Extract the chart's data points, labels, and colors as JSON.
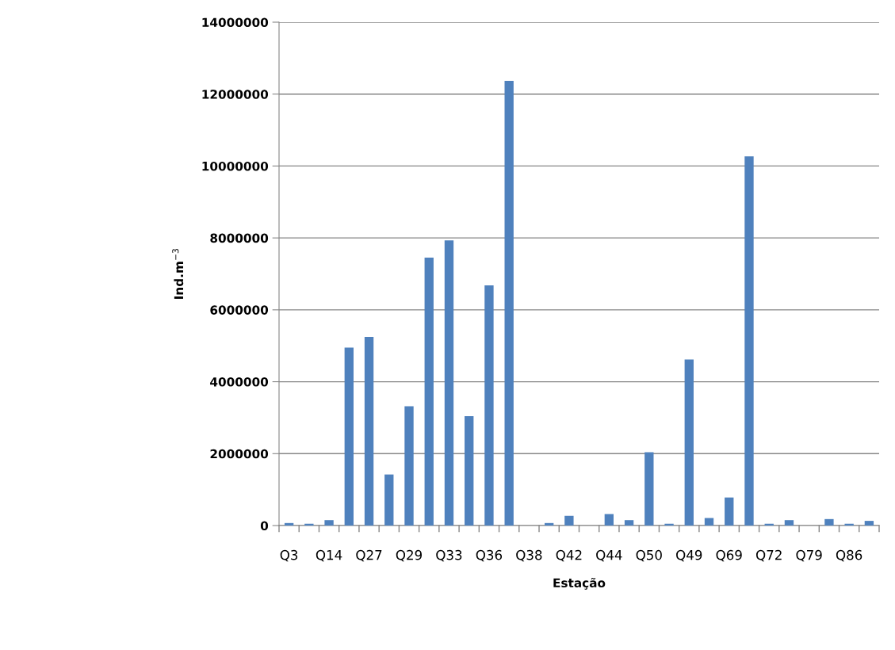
{
  "chart_data": {
    "type": "bar",
    "xlabel": "Estação",
    "ylabel": "Ind.m$^{−3}$",
    "categories": [
      "Q3",
      null,
      "Q14",
      null,
      "Q27",
      null,
      "Q29",
      null,
      "Q33",
      null,
      "Q36",
      null,
      "Q38",
      null,
      "Q42",
      null,
      "Q44",
      null,
      "Q50",
      null,
      "Q49",
      null,
      "Q69",
      null,
      "Q72",
      null,
      "Q79",
      null,
      "Q86",
      null
    ],
    "values": [
      70000,
      50000,
      150000,
      4950000,
      5250000,
      1420000,
      3320000,
      7450000,
      7930000,
      3040000,
      6680000,
      12370000,
      0,
      70000,
      270000,
      0,
      320000,
      150000,
      2040000,
      50000,
      4620000,
      210000,
      780000,
      10270000,
      50000,
      150000,
      0,
      180000,
      50000,
      130000
    ],
    "color": "#4f81bd",
    "ylim": [
      0,
      14000000
    ],
    "yticks": [
      0,
      2000000,
      4000000,
      6000000,
      8000000,
      10000000,
      12000000,
      14000000
    ],
    "grid": "y",
    "legend": false
  }
}
